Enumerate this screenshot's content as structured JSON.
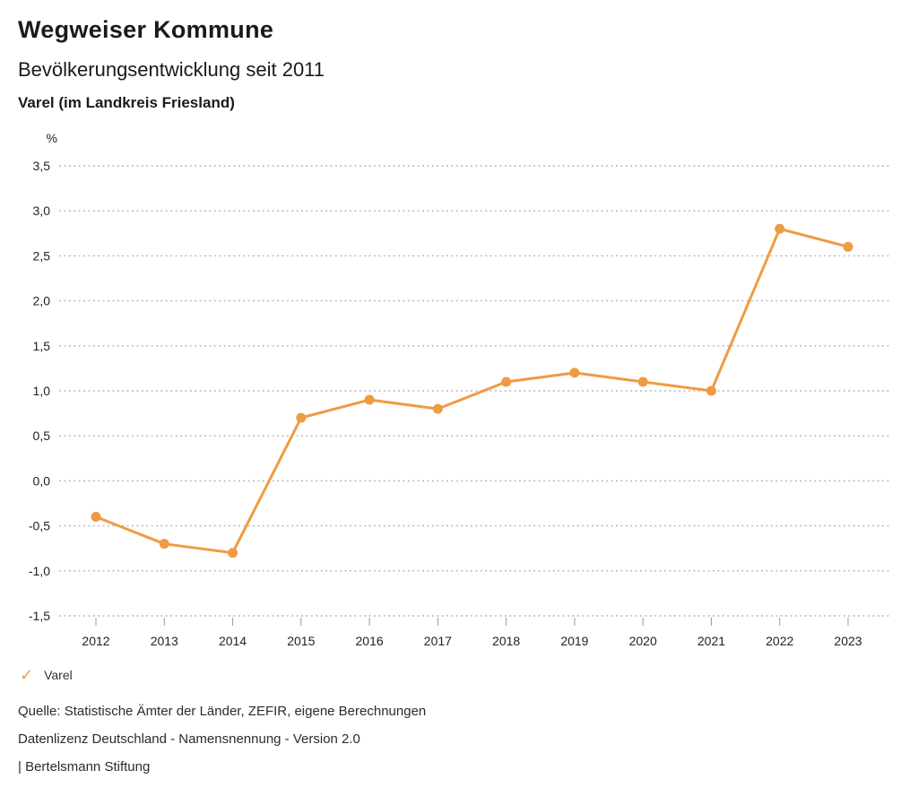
{
  "header": {
    "title": "Wegweiser Kommune",
    "subtitle": "Bevölkerungsentwicklung seit 2011",
    "location": "Varel (im Landkreis Friesland)"
  },
  "chart_data": {
    "type": "line",
    "title": "Bevölkerungsentwicklung seit 2011",
    "unit_label": "%",
    "x": [
      2012,
      2013,
      2014,
      2015,
      2016,
      2017,
      2018,
      2019,
      2020,
      2021,
      2022,
      2023
    ],
    "series": [
      {
        "name": "Varel",
        "values": [
          -0.4,
          -0.7,
          -0.8,
          0.7,
          0.9,
          0.8,
          1.1,
          1.2,
          1.1,
          1.0,
          2.8,
          2.6
        ]
      }
    ],
    "ylim": [
      -1.5,
      3.5
    ],
    "ytick_step": 0.5,
    "ytick_labels": [
      "3,5",
      "3,0",
      "2,5",
      "2,0",
      "1,5",
      "1,0",
      "0,5",
      "0,0",
      "-0,5",
      "-1,0",
      "-1,5"
    ],
    "grid": "horizontal-dotted",
    "legend_position": "bottom-left",
    "colors": {
      "series": "#ef9b42",
      "gridline": "#b5b5b5",
      "tick": "#9a9a9a",
      "axis_text": "#222222"
    }
  },
  "legend": {
    "items": [
      {
        "label": "Varel",
        "checked": true,
        "color": "#ef9b42",
        "check_glyph": "✓"
      }
    ]
  },
  "footer": {
    "source": "Quelle: Statistische Ämter der Länder, ZEFIR, eigene Berechnungen",
    "license": "Datenlizenz Deutschland - Namensnennung - Version 2.0",
    "attribution": "| Bertelsmann Stiftung"
  }
}
